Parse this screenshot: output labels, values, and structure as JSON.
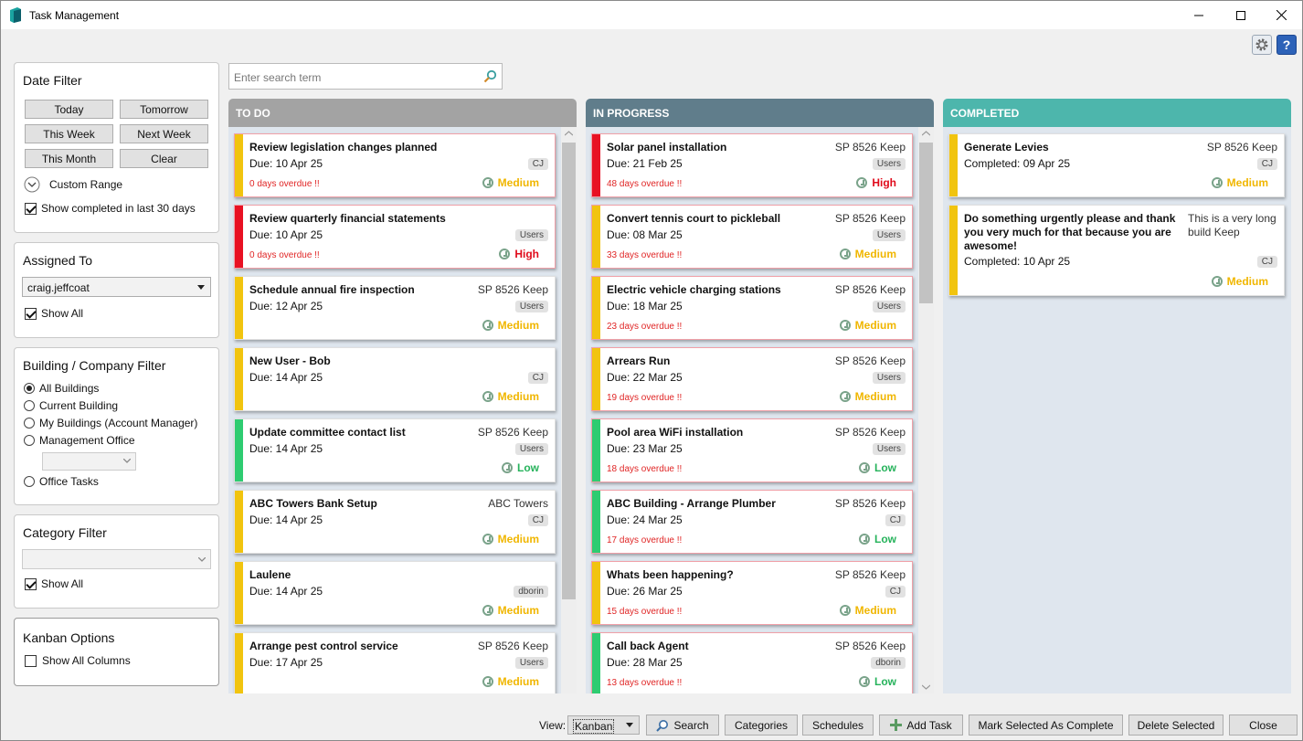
{
  "window": {
    "title": "Task Management"
  },
  "date_filter": {
    "title": "Date Filter",
    "buttons": [
      "Today",
      "Tomorrow",
      "This Week",
      "Next Week",
      "This Month",
      "Clear"
    ],
    "custom_range": "Custom Range",
    "show_completed": "Show completed in last 30 days"
  },
  "assigned_to": {
    "title": "Assigned To",
    "value": "craig.jeffcoat",
    "show_all": "Show All"
  },
  "building_filter": {
    "title": "Building / Company Filter",
    "options": [
      "All Buildings",
      "Current Building",
      "My Buildings (Account Manager)",
      "Management Office",
      "Office Tasks"
    ]
  },
  "category_filter": {
    "title": "Category Filter",
    "value": "",
    "show_all": "Show All"
  },
  "kanban_options": {
    "title": "Kanban Options",
    "show_all_columns": "Show All Columns"
  },
  "search": {
    "placeholder": "Enter search term"
  },
  "colors": {
    "high": "#e81123",
    "medium": "#f1c40f",
    "low": "#2ecc71",
    "todo_head": "#a3a3a3",
    "inprog_head": "#607d8b",
    "done_head": "#4db6ac"
  },
  "columns": [
    {
      "title": "TO DO",
      "cards": [
        {
          "title": "Review legislation changes planned",
          "due": "Due: 10 Apr 25",
          "building": "",
          "badge": "CJ",
          "overdue": "0 days overdue !!",
          "priority": "Medium"
        },
        {
          "title": "Review quarterly financial statements",
          "due": "Due: 10 Apr 25",
          "building": "",
          "badge": "Users",
          "overdue": "0 days overdue !!",
          "priority": "High"
        },
        {
          "title": "Schedule annual fire inspection",
          "due": "Due: 12 Apr 25",
          "building": "SP 8526 Keep",
          "badge": "Users",
          "overdue": "",
          "priority": "Medium"
        },
        {
          "title": "New User - Bob",
          "due": "Due: 14 Apr 25",
          "building": "",
          "badge": "CJ",
          "overdue": "",
          "priority": "Medium"
        },
        {
          "title": "Update committee contact list",
          "due": "Due: 14 Apr 25",
          "building": "SP 8526 Keep",
          "badge": "Users",
          "overdue": "",
          "priority": "Low"
        },
        {
          "title": "ABC Towers Bank Setup",
          "due": "Due: 14 Apr 25",
          "building": "ABC Towers",
          "badge": "CJ",
          "overdue": "",
          "priority": "Medium"
        },
        {
          "title": "Laulene",
          "due": "Due: 14 Apr 25",
          "building": "",
          "badge": "dborin",
          "overdue": "",
          "priority": "Medium"
        },
        {
          "title": "Arrange pest control service",
          "due": "Due: 17 Apr 25",
          "building": "SP 8526 Keep",
          "badge": "Users",
          "overdue": "",
          "priority": "Medium"
        }
      ]
    },
    {
      "title": "IN PROGRESS",
      "cards": [
        {
          "title": "Solar panel installation",
          "due": "Due: 21 Feb 25",
          "building": "SP 8526 Keep",
          "badge": "Users",
          "overdue": "48 days overdue !!",
          "priority": "High"
        },
        {
          "title": "Convert tennis court to pickleball",
          "due": "Due: 08 Mar 25",
          "building": "SP 8526 Keep",
          "badge": "Users",
          "overdue": "33 days overdue !!",
          "priority": "Medium"
        },
        {
          "title": "Electric vehicle charging stations",
          "due": "Due: 18 Mar 25",
          "building": "SP 8526 Keep",
          "badge": "Users",
          "overdue": "23 days overdue !!",
          "priority": "Medium"
        },
        {
          "title": "Arrears Run",
          "due": "Due: 22 Mar 25",
          "building": "SP 8526 Keep",
          "badge": "Users",
          "overdue": "19 days overdue !!",
          "priority": "Medium"
        },
        {
          "title": "Pool area WiFi installation",
          "due": "Due: 23 Mar 25",
          "building": "SP 8526 Keep",
          "badge": "Users",
          "overdue": "18 days overdue !!",
          "priority": "Low"
        },
        {
          "title": "ABC Building - Arrange Plumber",
          "due": "Due: 24 Mar 25",
          "building": "SP 8526 Keep",
          "badge": "CJ",
          "overdue": "17 days overdue !!",
          "priority": "Low"
        },
        {
          "title": "Whats been happening?",
          "due": "Due: 26 Mar 25",
          "building": "SP 8526 Keep",
          "badge": "CJ",
          "overdue": "15 days overdue !!",
          "priority": "Medium"
        },
        {
          "title": "Call back Agent",
          "due": "Due: 28 Mar 25",
          "building": "SP 8526 Keep",
          "badge": "dborin",
          "overdue": "13 days overdue !!",
          "priority": "Low"
        }
      ]
    },
    {
      "title": "COMPLETED",
      "cards": [
        {
          "title": "Generate Levies",
          "due": "Completed: 09 Apr 25",
          "building": "SP 8526 Keep",
          "badge": "CJ",
          "overdue": "",
          "priority": "Medium"
        },
        {
          "title": "Do something urgently please and thank you very much for that because you are awesome!",
          "due": "Completed: 10 Apr 25",
          "building": "This is a very long build Keep",
          "badge": "CJ",
          "overdue": "",
          "priority": "Medium"
        }
      ]
    }
  ],
  "bottom_bar": {
    "view_label": "View:",
    "view_value": "Kanban",
    "buttons": [
      "Search",
      "Categories",
      "Schedules",
      "Add Task",
      "Mark Selected As Complete",
      "Delete Selected",
      "Close"
    ]
  }
}
